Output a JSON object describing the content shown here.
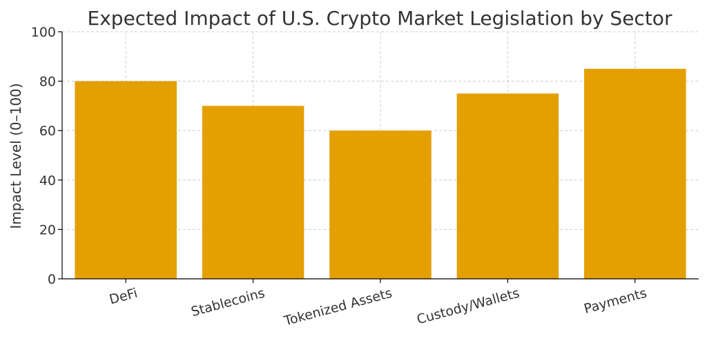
{
  "chart_data": {
    "type": "bar",
    "title": "Expected Impact of U.S. Crypto Market Legislation by Sector",
    "xlabel": "",
    "ylabel": "Impact Level (0–100)",
    "categories": [
      "DeFi",
      "Stablecoins",
      "Tokenized Assets",
      "Custody/Wallets",
      "Payments"
    ],
    "values": [
      80,
      70,
      60,
      75,
      85
    ],
    "ylim": [
      0,
      100
    ],
    "yticks": [
      0,
      20,
      40,
      60,
      80,
      100
    ],
    "grid": true,
    "legend": "none",
    "colors": {
      "bar": "#E49F00",
      "grid": "#cccccc",
      "axis": "#000000",
      "text": "#333333"
    }
  }
}
